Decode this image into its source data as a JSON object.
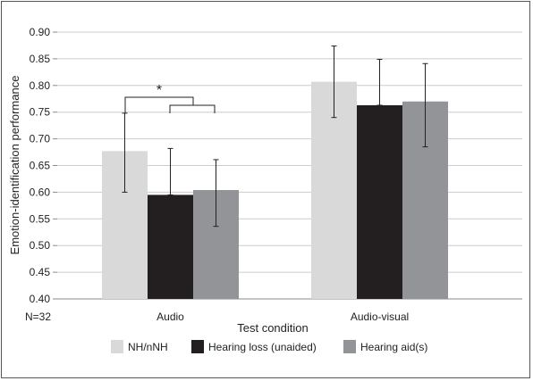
{
  "chart_data": {
    "type": "bar",
    "title": "",
    "xlabel": "Test condition",
    "ylabel": "Emotion-identification performance",
    "ylim": [
      0.4,
      0.9
    ],
    "yticks": [
      "0.40",
      "0.45",
      "0.50",
      "0.55",
      "0.60",
      "0.65",
      "0.70",
      "0.75",
      "0.80",
      "0.85",
      "0.90"
    ],
    "grid": true,
    "legend_position": "bottom",
    "sample_note": "N=32",
    "significance_marker": "*",
    "categories": [
      "Audio",
      "Audio-visual"
    ],
    "series": [
      {
        "name": "NH/nNH",
        "color": "#d9d9d9",
        "values": [
          0.677,
          0.807
        ],
        "error_low": [
          0.6,
          0.74
        ],
        "error_high": [
          0.748,
          0.874
        ]
      },
      {
        "name": "Hearing loss (unaided)",
        "color": "#231f20",
        "values": [
          0.595,
          0.763
        ],
        "error_low": [
          0.595,
          0.763
        ],
        "error_high": [
          0.682,
          0.849
        ]
      },
      {
        "name": "Hearing aid(s)",
        "color": "#929497",
        "values": [
          0.604,
          0.77
        ],
        "error_low": [
          0.536,
          0.685
        ],
        "error_high": [
          0.661,
          0.841
        ]
      }
    ]
  }
}
